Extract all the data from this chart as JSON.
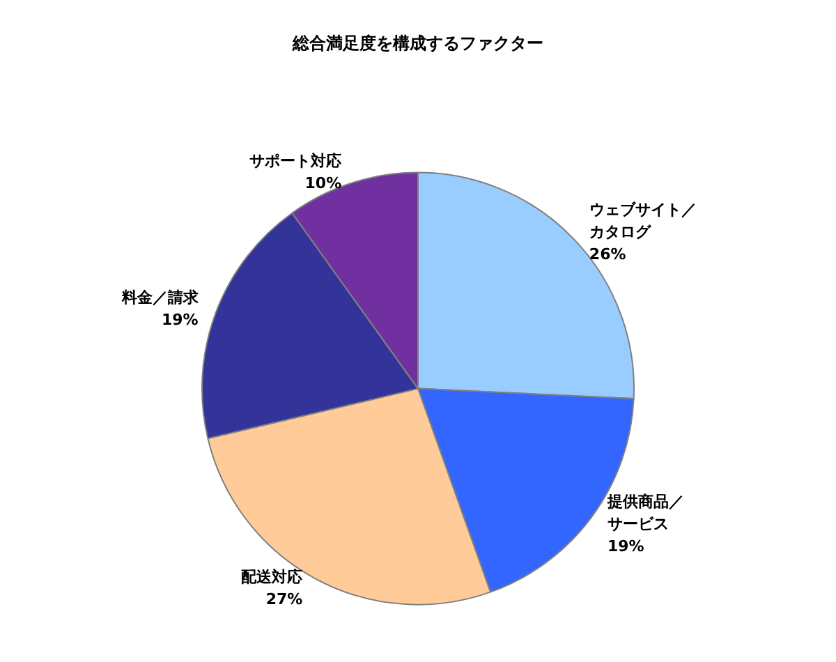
{
  "chart_data": {
    "type": "pie",
    "title": "総合満足度を構成するファクター",
    "categories": [
      "ウェブサイト／カタログ",
      "提供商品／サービス",
      "配送対応",
      "料金／請求",
      "サポート対応"
    ],
    "values": [
      26,
      19,
      27,
      19,
      10
    ],
    "value_labels": [
      "26%",
      "19%",
      "27%",
      "19%",
      "10%"
    ],
    "colors": [
      "#99ccff",
      "#3366ff",
      "#ffcc99",
      "#333399",
      "#7030a0"
    ]
  }
}
